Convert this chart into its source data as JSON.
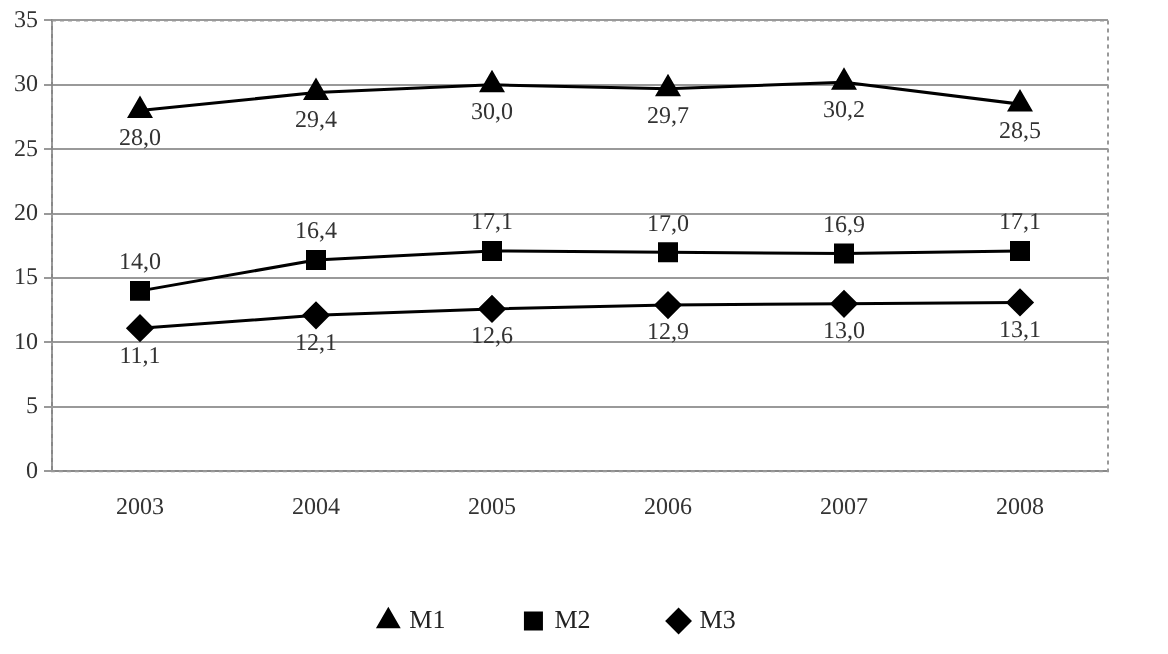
{
  "chart_data": {
    "type": "line",
    "categories": [
      "2003",
      "2004",
      "2005",
      "2006",
      "2007",
      "2008"
    ],
    "series": [
      {
        "name": "M1",
        "color": "#000000",
        "marker": "triangle",
        "values": [
          28.0,
          29.4,
          30.0,
          29.7,
          30.2,
          28.5
        ],
        "value_labels": [
          "28,0",
          "29,4",
          "30,0",
          "29,7",
          "30,2",
          "28,5"
        ]
      },
      {
        "name": "M2",
        "color": "#000000",
        "marker": "square",
        "values": [
          14.0,
          16.4,
          17.1,
          17.0,
          16.9,
          17.1
        ],
        "value_labels": [
          "14,0",
          "16,4",
          "17,1",
          "17,0",
          "16,9",
          "17,1"
        ]
      },
      {
        "name": "M3",
        "color": "#000000",
        "marker": "diamond",
        "values": [
          11.1,
          12.1,
          12.6,
          12.9,
          13.0,
          13.1
        ],
        "value_labels": [
          "11,1",
          "12,1",
          "12,6",
          "12,9",
          "13,0",
          "13,1"
        ]
      }
    ],
    "ylim": [
      0,
      35
    ],
    "yticks": [
      0,
      5,
      10,
      15,
      20,
      25,
      30,
      35
    ],
    "grid": "y",
    "legend": "bottom",
    "line_style": "solid"
  }
}
